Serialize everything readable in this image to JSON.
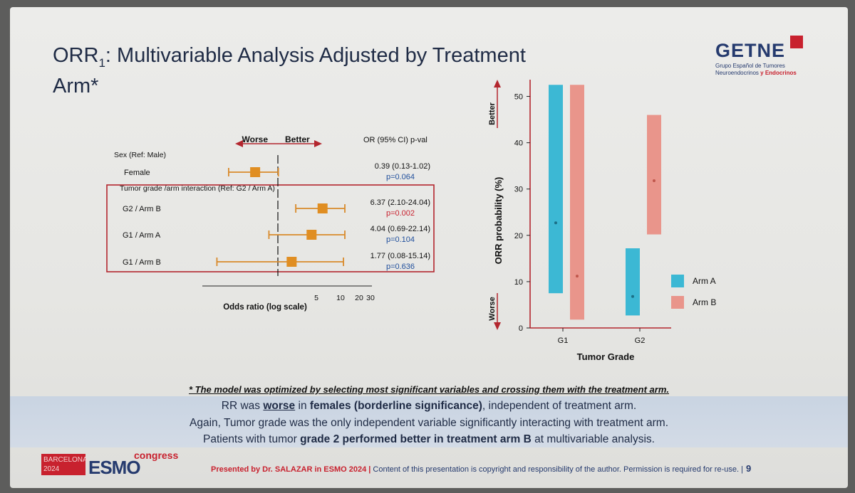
{
  "title": {
    "main": "ORR",
    "sub": "1",
    "rest": ": Multivariable Analysis Adjusted by Treatment",
    "line2": "Arm*"
  },
  "logo": {
    "word": "GETNE",
    "sub1": "Grupo Español de Tumores",
    "sub2a": "Neuroendocrinos ",
    "sub2b": "y Endocrinos"
  },
  "forest": {
    "worse_label": "Worse",
    "better_label": "Better",
    "header": "OR (95% CI) p-val",
    "group1": "Sex (Ref: Male)",
    "group2": "Tumor grade /arm interaction (Ref: G2 / Arm A)",
    "xlabel": "Odds ratio (log scale)",
    "ticks": [
      "5",
      "10",
      "20",
      "30"
    ],
    "rows": [
      {
        "label": "Female",
        "or": "0.39 (0.13-1.02)",
        "p": "p=0.064",
        "p_color": "#1f4e9c"
      },
      {
        "label": "G2 / Arm B",
        "or": "6.37 (2.10-24.04)",
        "p": "p=0.002",
        "p_color": "#c8212e"
      },
      {
        "label": "G1 / Arm A",
        "or": "4.04 (0.69-22.14)",
        "p": "p=0.104",
        "p_color": "#1f4e9c"
      },
      {
        "label": "G1 / Arm B",
        "or": "1.77 (0.08-15.14)",
        "p": "p=0.636",
        "p_color": "#1f4e9c"
      }
    ]
  },
  "chart_data": {
    "type": "bar",
    "title": "",
    "xlabel": "Tumor Grade",
    "ylabel": "ORR probability (%)",
    "ylim": [
      0,
      53
    ],
    "yticks": [
      0,
      10,
      20,
      30,
      40,
      50
    ],
    "categories": [
      "G1",
      "G2"
    ],
    "better_label": "Better",
    "worse_label": "Worse",
    "legend_position": "right",
    "series": [
      {
        "name": "Arm A",
        "color": "#3cb8d4",
        "lower": [
          7.5,
          2.7
        ],
        "point": [
          22.7,
          6.8
        ],
        "upper": [
          52.5,
          17.2
        ]
      },
      {
        "name": "Arm B",
        "color": "#e9958b",
        "lower": [
          1.8,
          20.2
        ],
        "point": [
          11.2,
          31.8
        ],
        "upper": [
          52.5,
          46.0
        ]
      }
    ]
  },
  "footnote": "* The model was optimized by selecting most significant variables and crossing them with the treatment arm.",
  "summary": {
    "l1a": "RR was ",
    "l1b": "worse",
    "l1c": " in ",
    "l1d": "females (borderline significance)",
    "l1e": ", independent of treatment arm.",
    "l2": "Again, Tumor grade was the only independent variable significantly interacting with treatment arm.",
    "l3a": "Patients with tumor ",
    "l3b": "grade 2 performed better in treatment arm B",
    "l3c": " at multivariable analysis."
  },
  "esmo": {
    "city": "BARCELONA",
    "year": "2024",
    "word": "ESMO",
    "congress": "congress"
  },
  "footer": {
    "presented": "Presented by Dr. SALAZAR in ESMO 2024 |",
    "rest": " Content of this presentation is copyright and responsibility of the author. Permission is required for re-use. |",
    "page": "9"
  }
}
